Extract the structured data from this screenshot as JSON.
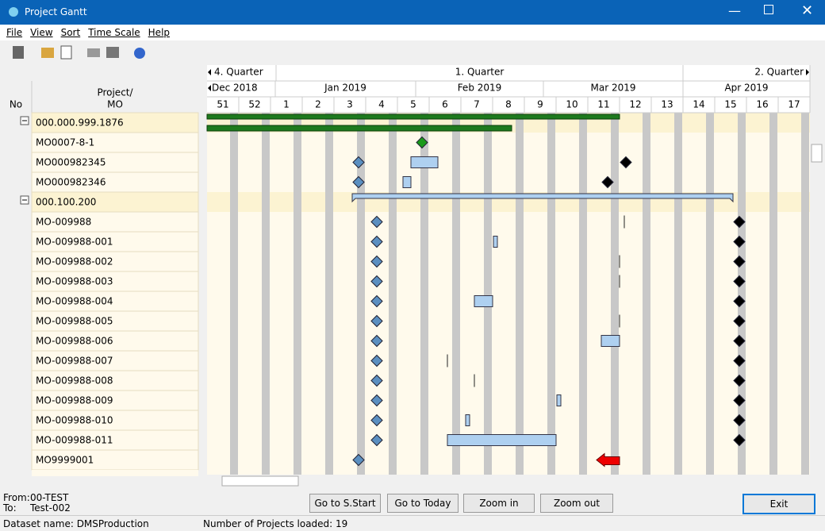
{
  "window": {
    "title": "Project Gantt"
  },
  "menu": [
    "File",
    "View",
    "Sort",
    "Time Scale",
    "Help"
  ],
  "grid": {
    "col_no": "No",
    "col_mo": "Project/\nMO",
    "rows": [
      "000.000.999.1876",
      "MO0007-8-1",
      "MO000982345",
      "MO000982346",
      "000.100.200",
      "MO-009988",
      "MO-009988-001",
      "MO-009988-002",
      "MO-009988-003",
      "MO-009988-004",
      "MO-009988-005",
      "MO-009988-006",
      "MO-009988-007",
      "MO-009988-008",
      "MO-009988-009",
      "MO-009988-010",
      "MO-009988-011",
      "MO9999001"
    ]
  },
  "timeline": {
    "quarters": [
      "4. Quarter",
      "1. Quarter",
      "2. Quarter"
    ],
    "months": [
      "Dec 2018",
      "Jan 2019",
      "Feb 2019",
      "Mar 2019",
      "Apr 2019"
    ],
    "weeks": [
      "51",
      "52",
      "1",
      "2",
      "3",
      "4",
      "5",
      "6",
      "7",
      "8",
      "9",
      "10",
      "11",
      "12",
      "13",
      "14",
      "15",
      "16",
      "17"
    ]
  },
  "footer": {
    "from_label": "From:",
    "from_value": "00-TEST",
    "to_label": "To:",
    "to_value": "Test-002",
    "buttons": [
      "Go to S.Start",
      "Go to Today",
      "Zoom in",
      "Zoom out"
    ],
    "exit": "Exit"
  },
  "status": {
    "dataset": "Dataset name:  DMSProduction",
    "projects": "Number of Projects loaded: 19"
  }
}
